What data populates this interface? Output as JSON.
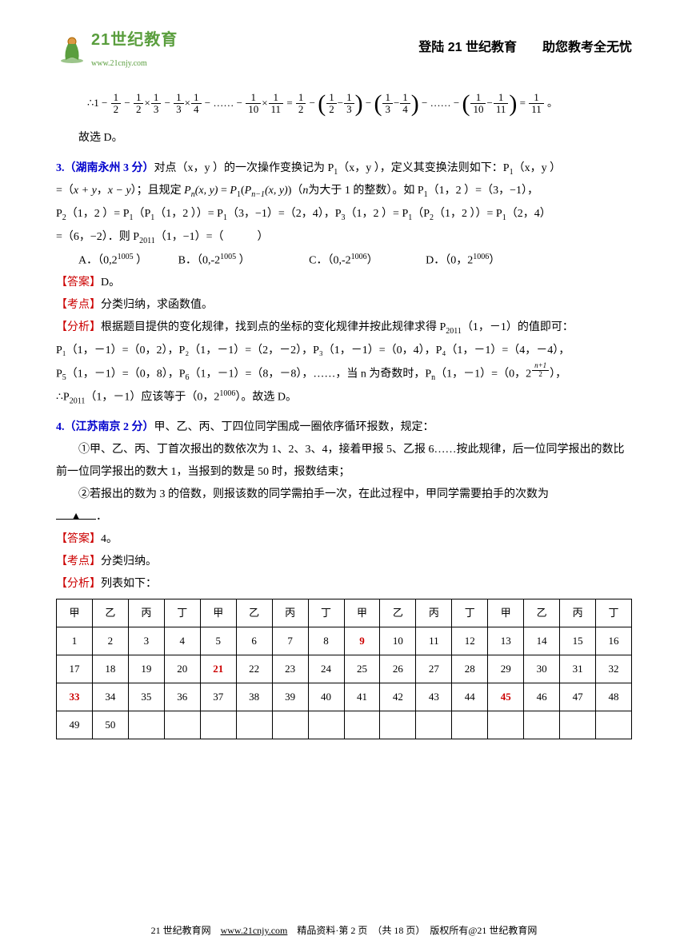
{
  "header": {
    "logo_main": "21世纪教育",
    "logo_url": "www.21cnjy.com",
    "right_prefix": "登陆",
    "right_num": " 21 ",
    "right_mid": "世纪教育",
    "right_gap": "　　",
    "right_suffix": "助您教考全无忧"
  },
  "eq1": {
    "prefix": "∴",
    "f1n": "1",
    "f1d": "2",
    "f2n": "1",
    "f2d": "2",
    "f3n": "1",
    "f3d": "3",
    "f4n": "1",
    "f4d": "3",
    "f5n": "1",
    "f5d": "4",
    "dots": "……",
    "f6n": "1",
    "f6d": "10",
    "f7n": "1",
    "f7d": "11",
    "eq": "=",
    "r1n": "1",
    "r1d": "2",
    "p1an": "1",
    "p1ad": "2",
    "p1bn": "1",
    "p1bd": "3",
    "p2an": "1",
    "p2ad": "3",
    "p2bn": "1",
    "p2bd": "4",
    "p3an": "1",
    "p3ad": "10",
    "p3bn": "1",
    "p3bd": "11",
    "finaln": "1",
    "finald": "11",
    "end": "。",
    "conclusion": "故选 D。"
  },
  "q3": {
    "label": "3.（湖南永州 3 分）",
    "text1": "对点（x，y ）的一次操作变换记为 P",
    "sub1": "1",
    "text2": "（x，y ），定义其变换法则如下：P",
    "sub2": "1",
    "text3": "（x，y ）",
    "line2_a": "=（",
    "xy1": "x + y",
    "line2_b": "，",
    "xy2": "x − y",
    "line2_c": "）；且规定",
    "pn_l": "P",
    "pn_sub": "n",
    "pn_args": "(x, y)",
    "eq": " = ",
    "p1_l": "P",
    "p1_sub": "1",
    "p1_open": "(",
    "pn1_l": "P",
    "pn1_sub": "n−1",
    "pn1_args": "(x, y)",
    "p1_close": ")",
    "paren_n": "（",
    "nvar": "n",
    "line2_d": "为大于 1 的整数）。如 P",
    "sub3": "1",
    "line2_e": "（1，2 ）=（3，−1），",
    "line3_p2a": "P",
    "line3_p2a_sub": "2",
    "line3_a": "（1，2 ）= P",
    "line3_b_sub": "1",
    "line3_b": "（P",
    "line3_c_sub": "1",
    "line3_c": "（1，2 ））= P",
    "line3_d_sub": "1",
    "line3_d": "（3，−1）=（2，4），P",
    "line3_e_sub": "3",
    "line3_e": "（1，2 ）= P",
    "line3_f_sub": "1",
    "line3_f": "（P",
    "line3_g_sub": "2",
    "line3_g": "（1，2 ））= P",
    "line3_h_sub": "1",
    "line3_h": "（2，4）",
    "line4": "=（6，−2）．则 P",
    "line4_sub": "2011",
    "line4_b": "（1，−1）=（　　　）",
    "optA": "A．（0,2",
    "optA_sup": "1005",
    "optA_end": " ）",
    "optB": "B．（0,-2",
    "optB_sup": "1005",
    "optB_end": " ）",
    "optC": "C．（0,-2",
    "optC_sup": "1006",
    "optC_end": "）",
    "optD": "D．（0，2",
    "optD_sup": "1006",
    "optD_end": "）"
  },
  "q3_ans": {
    "ans_label": "【答案】",
    "ans_val": "D。",
    "kp_label": "【考点】",
    "kp_val": "分类归纳，求函数值。",
    "an_label": "【分析】",
    "an_text": "根据题目提供的变化规律，找到点的坐标的变化规律并按此规律求得 P",
    "an_sub": "2011",
    "an_text2": "（1，－1）的值即可：",
    "seq_line1": "P₁（1，－1）=（0，2），P₂（1，－1）=（2，－2），P₃（1，－1）=（0，4），P₄（1，－1）=（4，－4），",
    "seq_p5": "P",
    "seq_p5_sub": "5",
    "seq_p5_t": "（1，－1）=（0，8），P",
    "seq_p6_sub": "6",
    "seq_p6_t": "（1，－1）=（8，－8），……，当 n 为奇数时，P",
    "seq_pn_sub": "n",
    "seq_pn_t": "（1，－1）=（0，",
    "pow_base": "2",
    "pow_num": "n+1",
    "pow_den": "2",
    "seq_end": "），",
    "concl_pre": "∴P",
    "concl_sub": "2011",
    "concl_mid": "（1，－1）应该等于（0，2",
    "concl_sup": "1006",
    "concl_end": "）。故选 D。"
  },
  "q4": {
    "label": "4.（江苏南京 2 分）",
    "text": "甲、乙、丙、丁四位同学围成一圈依序循环报数，规定：",
    "rule1": "①甲、乙、丙、丁首次报出的数依次为 1、2、3、4，接着甲报 5、乙报 6……按此规律，后一位同学报出的数比前一位同学报出的数大 1，当报到的数是 50 时，报数结束；",
    "rule2": "②若报出的数为 3 的倍数，则报该数的同学需拍手一次，在此过程中，甲同学需要拍手的次数为",
    "blank": "▲",
    "period": "．"
  },
  "q4_ans": {
    "ans_label": "【答案】",
    "ans_val": "4。",
    "kp_label": "【考点】",
    "kp_val": "分类归纳。",
    "an_label": "【分析】",
    "an_text": "列表如下："
  },
  "table": {
    "headers": [
      "甲",
      "乙",
      "丙",
      "丁",
      "甲",
      "乙",
      "丙",
      "丁",
      "甲",
      "乙",
      "丙",
      "丁",
      "甲",
      "乙",
      "丙",
      "丁"
    ],
    "rows": [
      [
        {
          "v": "1"
        },
        {
          "v": "2"
        },
        {
          "v": "3"
        },
        {
          "v": "4"
        },
        {
          "v": "5"
        },
        {
          "v": "6"
        },
        {
          "v": "7"
        },
        {
          "v": "8"
        },
        {
          "v": "9",
          "r": true
        },
        {
          "v": "10"
        },
        {
          "v": "11"
        },
        {
          "v": "12"
        },
        {
          "v": "13"
        },
        {
          "v": "14"
        },
        {
          "v": "15"
        },
        {
          "v": "16"
        }
      ],
      [
        {
          "v": "17"
        },
        {
          "v": "18"
        },
        {
          "v": "19"
        },
        {
          "v": "20"
        },
        {
          "v": "21",
          "r": true
        },
        {
          "v": "22"
        },
        {
          "v": "23"
        },
        {
          "v": "24"
        },
        {
          "v": "25"
        },
        {
          "v": "26"
        },
        {
          "v": "27"
        },
        {
          "v": "28"
        },
        {
          "v": "29"
        },
        {
          "v": "30"
        },
        {
          "v": "31"
        },
        {
          "v": "32"
        }
      ],
      [
        {
          "v": "33",
          "r": true
        },
        {
          "v": "34"
        },
        {
          "v": "35"
        },
        {
          "v": "36"
        },
        {
          "v": "37"
        },
        {
          "v": "38"
        },
        {
          "v": "39"
        },
        {
          "v": "40"
        },
        {
          "v": "41"
        },
        {
          "v": "42"
        },
        {
          "v": "43"
        },
        {
          "v": "44"
        },
        {
          "v": "45",
          "r": true
        },
        {
          "v": "46"
        },
        {
          "v": "47"
        },
        {
          "v": "48"
        }
      ],
      [
        {
          "v": "49"
        },
        {
          "v": "50"
        },
        {
          "v": ""
        },
        {
          "v": ""
        },
        {
          "v": ""
        },
        {
          "v": ""
        },
        {
          "v": ""
        },
        {
          "v": ""
        },
        {
          "v": ""
        },
        {
          "v": ""
        },
        {
          "v": ""
        },
        {
          "v": ""
        },
        {
          "v": ""
        },
        {
          "v": ""
        },
        {
          "v": ""
        },
        {
          "v": ""
        }
      ]
    ]
  },
  "footer": {
    "site": "21 世纪教育网",
    "url": "www.21cnjy.com",
    "mid": "精品资料·第 2 页　（共 18 页）　版权所有@21 世纪教育网"
  }
}
